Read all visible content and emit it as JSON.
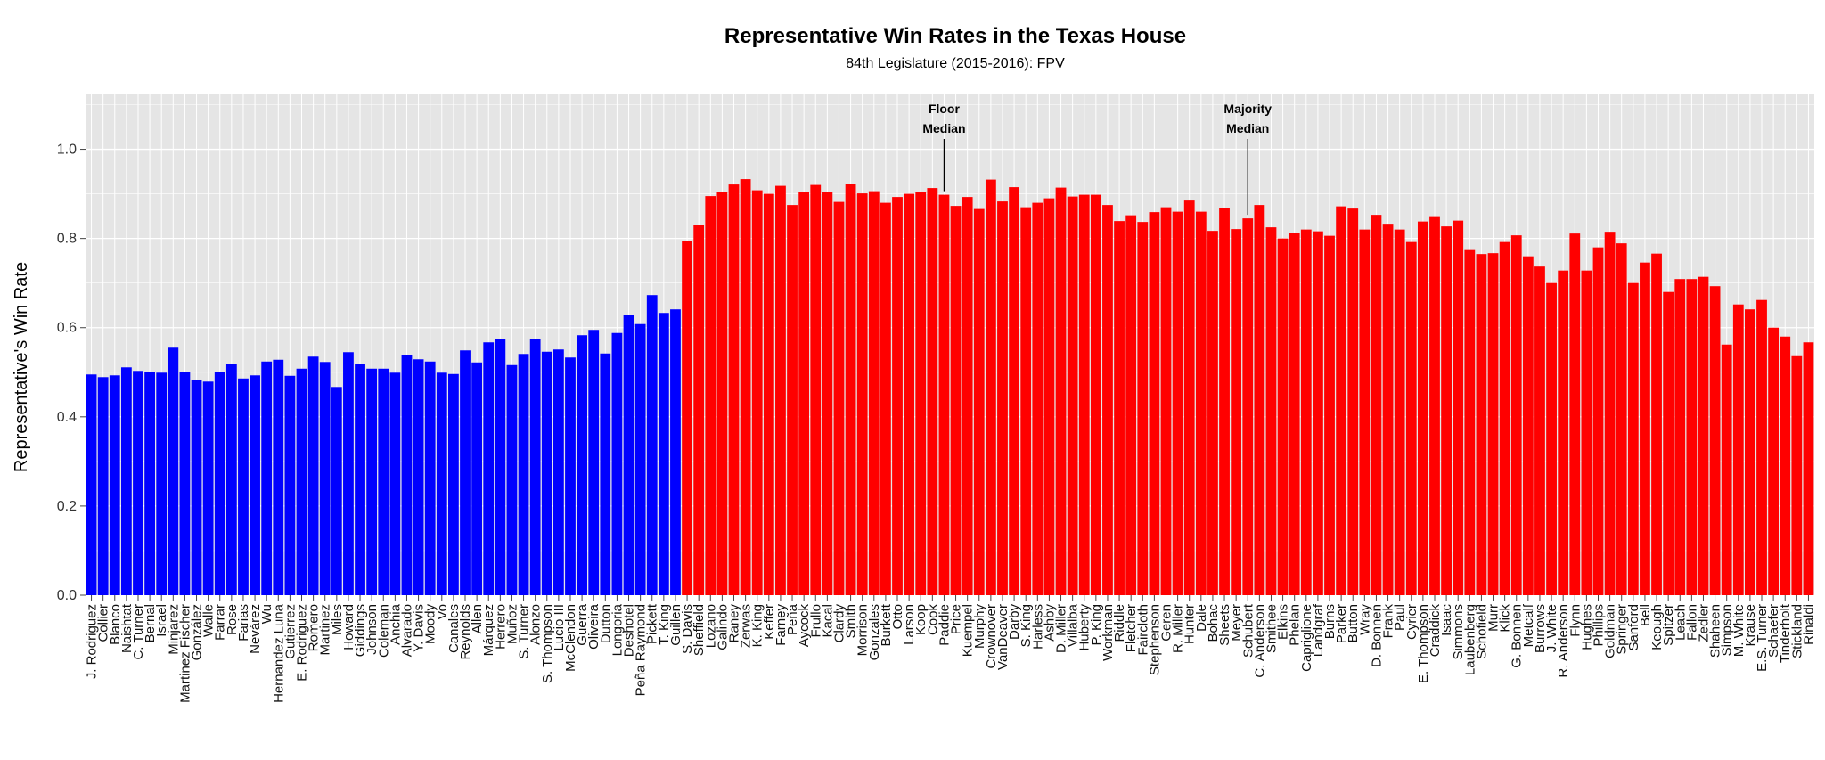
{
  "chart_data": {
    "type": "bar",
    "title": "Representative Win Rates in the Texas House",
    "subtitle": "84th Legislature (2015-2016): FPV",
    "ylabel": "Representative's Win Rate",
    "xlabel": "",
    "ylim": [
      0,
      1.125
    ],
    "yticks": [
      "0.0",
      "0.2",
      "0.4",
      "0.6",
      "0.8",
      "1.0"
    ],
    "grid": true,
    "legend": "none",
    "colors": {
      "democrat": "#0000ff",
      "republican": "#ff0000",
      "panel": "#e5e5e5",
      "grid": "#ffffff"
    },
    "annotations": [
      {
        "line1": "Floor",
        "line2": "Median",
        "category": "Paddie"
      },
      {
        "line1": "Majority",
        "line2": "Median",
        "category": "Schubert"
      }
    ],
    "categories": [
      "J. Rodriguez",
      "Collier",
      "Blanco",
      "Naishtat",
      "C. Turner",
      "Bernal",
      "Israel",
      "Minjarez",
      "Martinez Fischer",
      "González",
      "Walle",
      "Farrar",
      "Rose",
      "Farias",
      "Nevárez",
      "Wu",
      "Hernandez Luna",
      "Gutierrez",
      "E. Rodriguez",
      "Romero",
      "Martinez",
      "Miles",
      "Howard",
      "Giddings",
      "Johnson",
      "Coleman",
      "Anchia",
      "Alvarado",
      "Y. Davis",
      "Moody",
      "Vo",
      "Canales",
      "Reynolds",
      "Allen",
      "Márquez",
      "Herrero",
      "Muñoz",
      "S. Turner",
      "Alonzo",
      "S. Thompson",
      "Lucio III",
      "McClendon",
      "Guerra",
      "Oliveira",
      "Dutton",
      "Longoria",
      "Deshotel",
      "Peña Raymond",
      "Pickett",
      "T. King",
      "Guillen",
      "S. Davis",
      "Sheffield",
      "Lozano",
      "Galindo",
      "Raney",
      "Zerwas",
      "K. King",
      "Keffer",
      "Farney",
      "Peña",
      "Aycock",
      "Frullo",
      "Kacal",
      "Clardy",
      "Smith",
      "Morrison",
      "Gonzales",
      "Burkett",
      "Otto",
      "Larson",
      "Koop",
      "Cook",
      "Paddie",
      "Price",
      "Kuempel",
      "Murphy",
      "Crownover",
      "VanDeaver",
      "Darby",
      "S. King",
      "Harless",
      "Ashby",
      "D. Miller",
      "Villalba",
      "Huberty",
      "P. King",
      "Workman",
      "Riddle",
      "Fletcher",
      "Faircloth",
      "Stephenson",
      "Geren",
      "R. Miller",
      "Hunter",
      "Dale",
      "Bohac",
      "Sheets",
      "Meyer",
      "Schubert",
      "C. Anderson",
      "Smithee",
      "Elkins",
      "Phelan",
      "Capriglione",
      "Landgraf",
      "Burns",
      "Parker",
      "Button",
      "Wray",
      "D. Bonnen",
      "Frank",
      "Paul",
      "Cyrier",
      "E. Thompson",
      "Craddick",
      "Isaac",
      "Simmons",
      "Laubenberg",
      "Schofield",
      "Murr",
      "Klick",
      "G. Bonnen",
      "Metcalf",
      "Burrows",
      "J. White",
      "R. Anderson",
      "Flynn",
      "Hughes",
      "Phillips",
      "Goldman",
      "Springer",
      "Sanford",
      "Bell",
      "Keough",
      "Spitzer",
      "Leach",
      "Fallon",
      "Zedler",
      "Shaheen",
      "Simpson",
      "M. White",
      "Krause",
      "E.S. Turner",
      "Schaefer",
      "Tinderholt",
      "Stickland",
      "Rinaldi"
    ],
    "values": [
      0.495,
      0.489,
      0.493,
      0.511,
      0.503,
      0.5,
      0.499,
      0.555,
      0.501,
      0.483,
      0.479,
      0.501,
      0.519,
      0.486,
      0.493,
      0.524,
      0.528,
      0.492,
      0.508,
      0.535,
      0.523,
      0.467,
      0.545,
      0.519,
      0.508,
      0.508,
      0.499,
      0.539,
      0.529,
      0.524,
      0.499,
      0.496,
      0.549,
      0.522,
      0.567,
      0.575,
      0.516,
      0.541,
      0.575,
      0.546,
      0.551,
      0.533,
      0.583,
      0.595,
      0.542,
      0.588,
      0.628,
      0.608,
      0.673,
      0.633,
      0.641,
      0.795,
      0.83,
      0.895,
      0.905,
      0.921,
      0.933,
      0.908,
      0.9,
      0.918,
      0.875,
      0.904,
      0.92,
      0.904,
      0.882,
      0.922,
      0.901,
      0.906,
      0.88,
      0.893,
      0.9,
      0.905,
      0.913,
      0.898,
      0.873,
      0.893,
      0.866,
      0.932,
      0.883,
      0.915,
      0.87,
      0.88,
      0.89,
      0.914,
      0.894,
      0.898,
      0.898,
      0.875,
      0.839,
      0.852,
      0.837,
      0.859,
      0.87,
      0.86,
      0.885,
      0.86,
      0.817,
      0.868,
      0.821,
      0.845,
      0.875,
      0.825,
      0.8,
      0.812,
      0.82,
      0.816,
      0.806,
      0.872,
      0.867,
      0.82,
      0.853,
      0.833,
      0.82,
      0.792,
      0.838,
      0.85,
      0.827,
      0.84,
      0.774,
      0.765,
      0.767,
      0.792,
      0.807,
      0.76,
      0.737,
      0.7,
      0.728,
      0.811,
      0.728,
      0.78,
      0.815,
      0.789,
      0.7,
      0.746,
      0.766,
      0.68,
      0.709,
      0.709,
      0.714,
      0.693,
      0.562,
      0.652,
      0.641,
      0.662,
      0.6,
      0.58,
      0.536,
      0.567
    ],
    "party_split_index": 51
  }
}
